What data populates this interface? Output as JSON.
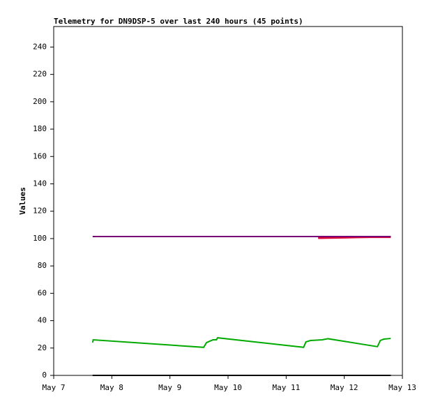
{
  "chart_data": {
    "type": "line",
    "title": "Telemetry for DN9DSP-5 over last 240 hours (45 points)",
    "y_label": "Values",
    "xlim": [
      7,
      13
    ],
    "xticks": [
      {
        "value": 7,
        "label": "May 7"
      },
      {
        "value": 8,
        "label": "May 8"
      },
      {
        "value": 9,
        "label": "May 9"
      },
      {
        "value": 10,
        "label": "May 10"
      },
      {
        "value": 11,
        "label": "May 11"
      },
      {
        "value": 12,
        "label": "May 12"
      },
      {
        "value": 13,
        "label": "May 13"
      }
    ],
    "ylim": [
      0,
      255
    ],
    "yticks": [
      0,
      20,
      40,
      60,
      80,
      100,
      120,
      140,
      160,
      180,
      200,
      220,
      240
    ],
    "series": [
      {
        "color": "#000000",
        "width": 2,
        "x": [
          7.67,
          12.8
        ],
        "values": [
          0,
          0
        ]
      },
      {
        "color": "#00aa00",
        "width": 2,
        "x": [
          7.67,
          7.68,
          9.58,
          9.63,
          9.74,
          9.8,
          9.82,
          11.3,
          11.34,
          11.42,
          11.62,
          11.72,
          12.57,
          12.62,
          12.68,
          12.8
        ],
        "values": [
          24,
          26,
          20.5,
          24,
          26,
          26,
          27.5,
          20.5,
          24.5,
          25.5,
          26,
          26.8,
          21,
          25.5,
          26.5,
          27
        ]
      },
      {
        "color": "#dd0033",
        "width": 3,
        "x": [
          11.55,
          12.0,
          12.45,
          12.8
        ],
        "values": [
          100.5,
          100.8,
          101.2,
          101.2
        ]
      },
      {
        "color": "#770077",
        "width": 2,
        "x": [
          7.67,
          12.8
        ],
        "values": [
          101.5,
          101.5
        ]
      }
    ]
  }
}
